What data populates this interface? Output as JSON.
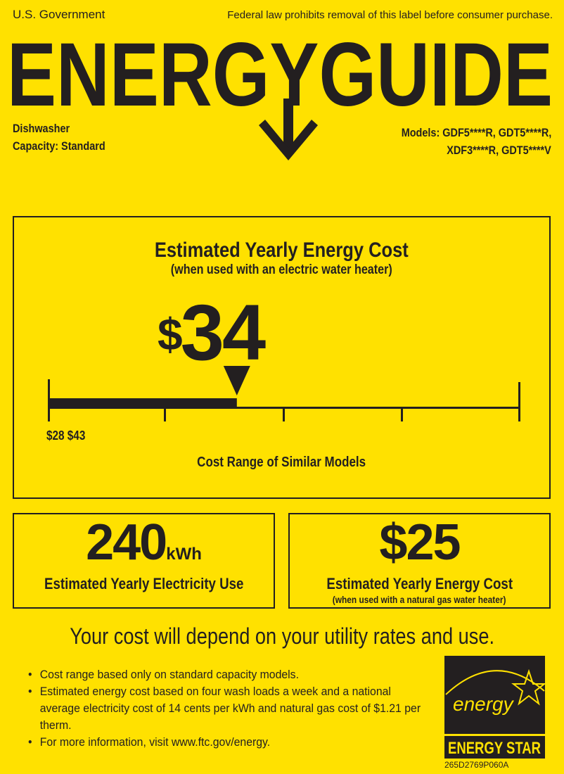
{
  "header": {
    "gov": "U.S. Government",
    "notice": "Federal law prohibits removal of this label before consumer purchase.",
    "title": "ENERGYGUIDE",
    "product": "Dishwasher",
    "capacity": "Capacity: Standard",
    "models_line1": "Models: GDF5****R, GDT5****R,",
    "models_line2": "XDF3****R, GDT5****V"
  },
  "main_cost": {
    "title": "Estimated Yearly Energy Cost",
    "subtitle": "(when used with an electric water heater)",
    "currency": "$",
    "value": "34",
    "range_low": "$28",
    "range_high": "$43",
    "range_min": 28,
    "range_max": 43,
    "cost": 34,
    "range_label": "Cost Range of Similar Models"
  },
  "electricity": {
    "value": "240",
    "unit": "kWh",
    "label": "Estimated Yearly Electricity Use"
  },
  "gas_cost": {
    "value": "$25",
    "label": "Estimated Yearly Energy Cost",
    "sublabel": "(when used with a natural gas water heater)"
  },
  "depend_text": "Your cost will depend on your utility rates and use.",
  "bullets": [
    "Cost range based only on standard capacity models.",
    "Estimated energy cost based on four wash loads a week and a national average electricity cost of 14 cents per kWh and natural gas cost of $1.21 per therm.",
    "For more information, visit www.ftc.gov/energy."
  ],
  "energy_star": {
    "script": "energy",
    "label": "ENERGY STAR",
    "code": "265D2769P060A"
  },
  "colors": {
    "background": "#FFE100",
    "ink": "#231f20"
  }
}
